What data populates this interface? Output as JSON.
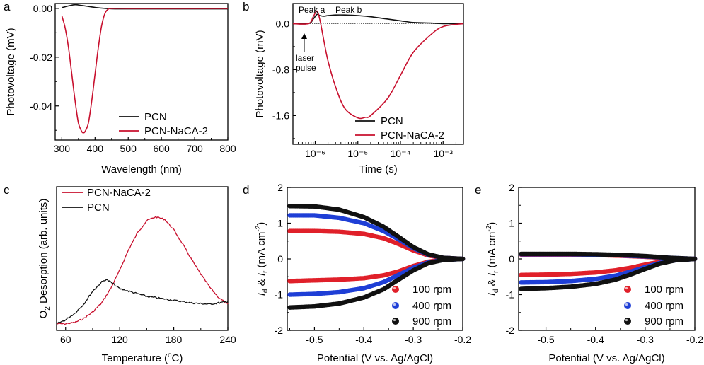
{
  "colors": {
    "pcn": "#111111",
    "nacaa": "#c8102e",
    "rpm100": "#e0202a",
    "rpm400": "#1f3fd6",
    "rpm900": "#111111"
  },
  "chart_data": [
    {
      "panel": "a",
      "type": "line",
      "xlabel": "Wavelength (nm)",
      "ylabel": "Photovoltage (mV)",
      "xlim": [
        280,
        800
      ],
      "ylim": [
        -0.054,
        0.002
      ],
      "xticks": [
        "300",
        "400",
        "500",
        "600",
        "700",
        "800"
      ],
      "yticks": [
        "0.00",
        "-0.02",
        "-0.04"
      ],
      "legend": [
        "PCN",
        "PCN-NaCA-2"
      ],
      "legend_position": "bottom-right",
      "series": [
        {
          "name": "PCN",
          "x": [
            300,
            320,
            340,
            360,
            380,
            400,
            420,
            440,
            460,
            500,
            600,
            700,
            800
          ],
          "y": [
            0.0003,
            0.001,
            0.0015,
            0.0012,
            0.0008,
            0.0004,
            0.0001,
            -0.0001,
            -0.0002,
            -0.0002,
            -0.0002,
            -0.0002,
            -0.0002
          ]
        },
        {
          "name": "PCN-NaCA-2",
          "x": [
            300,
            310,
            320,
            330,
            340,
            350,
            360,
            365,
            370,
            380,
            390,
            400,
            410,
            420,
            430,
            440,
            450,
            500,
            600,
            700,
            800
          ],
          "y": [
            -0.003,
            -0.008,
            -0.016,
            -0.027,
            -0.038,
            -0.047,
            -0.0505,
            -0.051,
            -0.0505,
            -0.047,
            -0.038,
            -0.027,
            -0.016,
            -0.007,
            -0.002,
            -0.0003,
            0.0,
            0.0,
            0.0,
            0.0,
            0.0
          ]
        }
      ]
    },
    {
      "panel": "b",
      "type": "line",
      "xscale": "log",
      "xlabel": "Time (s)",
      "ylabel": "Photovoltage (mV)",
      "xlim": [
        3e-07,
        0.003
      ],
      "ylim": [
        -2.1,
        0.35
      ],
      "xticks": [
        "10⁻⁶",
        "10⁻⁵",
        "10⁻⁴",
        "10⁻³"
      ],
      "yticks": [
        "0.0",
        "-0.8",
        "-1.6"
      ],
      "legend": [
        "PCN",
        "PCN-NaCA-2"
      ],
      "legend_position": "bottom-right",
      "annotations": [
        "Peak a",
        "Peak b",
        "laser",
        "pulse"
      ],
      "series": [
        {
          "name": "PCN",
          "x": [
            3e-07,
            7e-07,
            9e-07,
            1.1e-06,
            1.3e-06,
            1.6e-06,
            2e-06,
            3e-06,
            5e-06,
            1e-05,
            2e-05,
            5e-05,
            0.0001,
            0.0002,
            0.0005,
            0.001,
            0.003
          ],
          "y": [
            0.0,
            0.0,
            0.08,
            0.16,
            0.14,
            0.13,
            0.14,
            0.15,
            0.15,
            0.14,
            0.12,
            0.08,
            0.05,
            0.02,
            0.01,
            0.0,
            0.0
          ]
        },
        {
          "name": "PCN-NaCA-2",
          "x": [
            3e-07,
            7e-07,
            9e-07,
            1.1e-06,
            1.3e-06,
            1.6e-06,
            2e-06,
            3e-06,
            5e-06,
            1e-05,
            1.5e-05,
            2e-05,
            5e-05,
            0.0001,
            0.0002,
            0.0005,
            0.001,
            0.003
          ],
          "y": [
            0.0,
            0.0,
            0.12,
            0.22,
            0.05,
            -0.3,
            -0.65,
            -1.1,
            -1.48,
            -1.64,
            -1.63,
            -1.6,
            -1.3,
            -0.9,
            -0.5,
            -0.2,
            -0.05,
            0.0
          ]
        }
      ]
    },
    {
      "panel": "c",
      "type": "line",
      "xlabel": "Temperature (°C)",
      "ylabel": "O2 Desorption (arb. units)",
      "xlim": [
        50,
        240
      ],
      "ylim": [
        0,
        1.1
      ],
      "xticks": [
        "60",
        "120",
        "180",
        "240"
      ],
      "yticks": [],
      "legend": [
        "PCN-NaCA-2",
        "PCN"
      ],
      "legend_position": "top-left",
      "series": [
        {
          "name": "PCN-NaCA-2",
          "x": [
            50,
            60,
            70,
            80,
            90,
            100,
            110,
            120,
            130,
            140,
            150,
            160,
            170,
            180,
            190,
            200,
            210,
            220,
            230,
            240
          ],
          "y": [
            0.05,
            0.05,
            0.06,
            0.09,
            0.14,
            0.21,
            0.32,
            0.46,
            0.62,
            0.75,
            0.84,
            0.87,
            0.85,
            0.77,
            0.66,
            0.54,
            0.43,
            0.33,
            0.25,
            0.2
          ]
        },
        {
          "name": "PCN",
          "x": [
            50,
            60,
            70,
            80,
            90,
            100,
            105,
            110,
            120,
            130,
            140,
            150,
            160,
            180,
            200,
            220,
            240
          ],
          "y": [
            0.05,
            0.08,
            0.13,
            0.2,
            0.3,
            0.37,
            0.39,
            0.37,
            0.32,
            0.3,
            0.28,
            0.26,
            0.25,
            0.23,
            0.21,
            0.2,
            0.22
          ]
        }
      ]
    },
    {
      "panel": "d",
      "type": "scatter",
      "xlabel": "Potential (V vs. Ag/AgCl)",
      "ylabel_parts": [
        "I",
        "d",
        " & ",
        "I",
        "r",
        " (mA cm",
        "-2",
        ")"
      ],
      "xlim": [
        -0.555,
        -0.2
      ],
      "ylim": [
        -2,
        2
      ],
      "xticks": [
        "-0.5",
        "-0.4",
        "-0.3",
        "-0.2"
      ],
      "yticks": [
        "2",
        "1",
        "0",
        "-1",
        "-2"
      ],
      "legend": [
        "100 rpm",
        "400 rpm",
        "900 rpm"
      ],
      "legend_position": "bottom-right",
      "series": [
        {
          "name": "100 rpm",
          "ring": {
            "x": [
              -0.55,
              -0.5,
              -0.45,
              -0.4,
              -0.36,
              -0.33,
              -0.3,
              -0.27,
              -0.24,
              -0.2
            ],
            "y": [
              0.78,
              0.78,
              0.76,
              0.7,
              0.58,
              0.42,
              0.24,
              0.1,
              0.03,
              0.0
            ]
          },
          "disk": {
            "x": [
              -0.55,
              -0.5,
              -0.45,
              -0.4,
              -0.36,
              -0.33,
              -0.3,
              -0.27,
              -0.24,
              -0.2
            ],
            "y": [
              -0.62,
              -0.6,
              -0.58,
              -0.54,
              -0.46,
              -0.35,
              -0.2,
              -0.08,
              -0.02,
              0.0
            ]
          }
        },
        {
          "name": "400 rpm",
          "ring": {
            "x": [
              -0.55,
              -0.5,
              -0.45,
              -0.4,
              -0.36,
              -0.33,
              -0.3,
              -0.27,
              -0.24,
              -0.2
            ],
            "y": [
              1.22,
              1.22,
              1.15,
              1.0,
              0.78,
              0.55,
              0.3,
              0.12,
              0.03,
              0.0
            ]
          },
          "disk": {
            "x": [
              -0.55,
              -0.5,
              -0.45,
              -0.4,
              -0.36,
              -0.33,
              -0.3,
              -0.27,
              -0.24,
              -0.2
            ],
            "y": [
              -1.0,
              -0.98,
              -0.93,
              -0.82,
              -0.65,
              -0.45,
              -0.25,
              -0.1,
              -0.03,
              0.0
            ]
          }
        },
        {
          "name": "900 rpm",
          "ring": {
            "x": [
              -0.55,
              -0.5,
              -0.45,
              -0.4,
              -0.36,
              -0.33,
              -0.3,
              -0.27,
              -0.24,
              -0.2
            ],
            "y": [
              1.48,
              1.47,
              1.38,
              1.17,
              0.9,
              0.62,
              0.33,
              0.13,
              0.03,
              0.0
            ]
          },
          "disk": {
            "x": [
              -0.55,
              -0.5,
              -0.45,
              -0.4,
              -0.36,
              -0.33,
              -0.3,
              -0.27,
              -0.24,
              -0.2
            ],
            "y": [
              -1.36,
              -1.33,
              -1.25,
              -1.08,
              -0.85,
              -0.58,
              -0.32,
              -0.12,
              -0.03,
              0.0
            ]
          }
        }
      ]
    },
    {
      "panel": "e",
      "type": "scatter",
      "xlabel": "Potential (V vs. Ag/AgCl)",
      "ylabel_parts": [
        "I",
        "d",
        " & ",
        "I",
        "r",
        " (mA cm",
        "-2",
        ")"
      ],
      "xlim": [
        -0.555,
        -0.2
      ],
      "ylim": [
        -2,
        2
      ],
      "xticks": [
        "-0.5",
        "-0.4",
        "-0.3",
        "-0.2"
      ],
      "yticks": [
        "2",
        "1",
        "0",
        "-1",
        "-2"
      ],
      "legend": [
        "100 rpm",
        "400 rpm",
        "900 rpm"
      ],
      "legend_position": "bottom-right",
      "series": [
        {
          "name": "100 rpm",
          "ring": {
            "x": [
              -0.55,
              -0.5,
              -0.45,
              -0.4,
              -0.35,
              -0.3,
              -0.25,
              -0.2
            ],
            "y": [
              0.12,
              0.12,
              0.12,
              0.11,
              0.09,
              0.06,
              0.02,
              0.0
            ]
          },
          "disk": {
            "x": [
              -0.55,
              -0.5,
              -0.45,
              -0.4,
              -0.36,
              -0.33,
              -0.3,
              -0.27,
              -0.24,
              -0.2
            ],
            "y": [
              -0.45,
              -0.44,
              -0.42,
              -0.38,
              -0.32,
              -0.25,
              -0.16,
              -0.08,
              -0.03,
              0.0
            ]
          }
        },
        {
          "name": "400 rpm",
          "ring": {
            "x": [
              -0.55,
              -0.5,
              -0.45,
              -0.4,
              -0.35,
              -0.3,
              -0.25,
              -0.2
            ],
            "y": [
              0.13,
              0.13,
              0.13,
              0.12,
              0.1,
              0.07,
              0.03,
              0.0
            ]
          },
          "disk": {
            "x": [
              -0.55,
              -0.5,
              -0.45,
              -0.4,
              -0.36,
              -0.33,
              -0.3,
              -0.27,
              -0.24,
              -0.2
            ],
            "y": [
              -0.66,
              -0.65,
              -0.62,
              -0.56,
              -0.47,
              -0.36,
              -0.23,
              -0.11,
              -0.04,
              0.0
            ]
          }
        },
        {
          "name": "900 rpm",
          "ring": {
            "x": [
              -0.55,
              -0.5,
              -0.45,
              -0.4,
              -0.35,
              -0.3,
              -0.25,
              -0.2
            ],
            "y": [
              0.14,
              0.14,
              0.14,
              0.13,
              0.11,
              0.08,
              0.03,
              0.0
            ]
          },
          "disk": {
            "x": [
              -0.55,
              -0.5,
              -0.45,
              -0.4,
              -0.36,
              -0.33,
              -0.3,
              -0.27,
              -0.24,
              -0.2
            ],
            "y": [
              -0.84,
              -0.82,
              -0.78,
              -0.7,
              -0.58,
              -0.44,
              -0.28,
              -0.13,
              -0.04,
              0.0
            ]
          }
        }
      ]
    }
  ]
}
